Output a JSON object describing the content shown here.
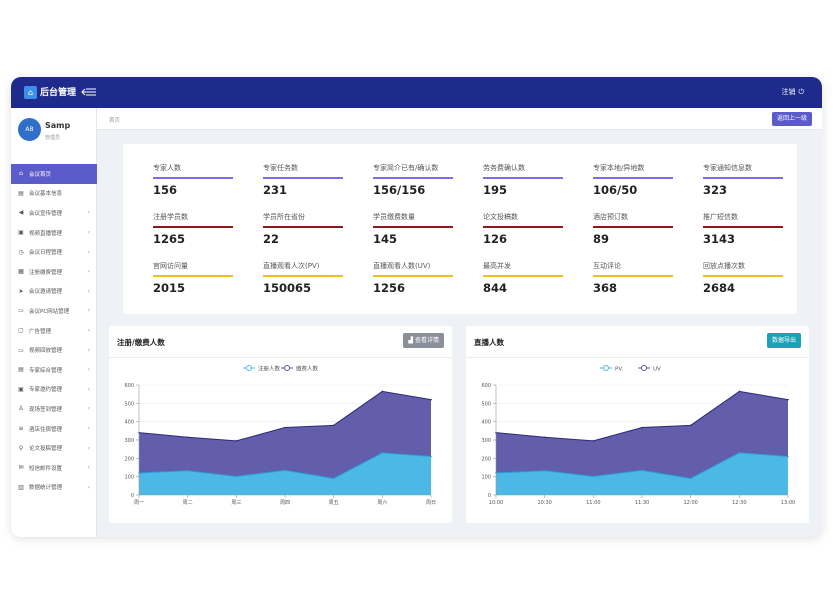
{
  "header": {
    "app_title": "后台管理",
    "logout_label": "注销",
    "logo_text": "⌂"
  },
  "user": {
    "avatar_text": "AB",
    "name": "Samp",
    "role": "管理员"
  },
  "sidebar": {
    "items": [
      {
        "label": "会议首页",
        "icon": "⌂",
        "active": true,
        "arrow": false
      },
      {
        "label": "会议基本信息",
        "icon": "▤",
        "active": false,
        "arrow": false
      },
      {
        "label": "会议宣传管理",
        "icon": "◀",
        "active": false,
        "arrow": true
      },
      {
        "label": "视频直播管理",
        "icon": "▣",
        "active": false,
        "arrow": true
      },
      {
        "label": "会议日程管理",
        "icon": "◷",
        "active": false,
        "arrow": true
      },
      {
        "label": "注册缴费管理",
        "icon": "▦",
        "active": false,
        "arrow": true
      },
      {
        "label": "会议邀请管理",
        "icon": "➤",
        "active": false,
        "arrow": true
      },
      {
        "label": "会议PC网站管理",
        "icon": "▭",
        "active": false,
        "arrow": true
      },
      {
        "label": "广告管理",
        "icon": "▢",
        "active": false,
        "arrow": true
      },
      {
        "label": "视频回放管理",
        "icon": "▭",
        "active": false,
        "arrow": true
      },
      {
        "label": "专家综合管理",
        "icon": "▤",
        "active": false,
        "arrow": true
      },
      {
        "label": "专家邀约管理",
        "icon": "▣",
        "active": false,
        "arrow": true
      },
      {
        "label": "现场签到管理",
        "icon": "♙",
        "active": false,
        "arrow": true
      },
      {
        "label": "酒店住宿管理",
        "icon": "≡",
        "active": false,
        "arrow": true
      },
      {
        "label": "论文投稿管理",
        "icon": "⚲",
        "active": false,
        "arrow": true
      },
      {
        "label": "短信邮件设置",
        "icon": "✉",
        "active": false,
        "arrow": true
      },
      {
        "label": "数据统计管理",
        "icon": "▥",
        "active": false,
        "arrow": true
      }
    ]
  },
  "breadcrumb": {
    "text": "首页",
    "back_label": "返回上一级"
  },
  "stats": [
    {
      "label": "专家人数",
      "value": "156",
      "color": "#7b6cf0"
    },
    {
      "label": "专家任务数",
      "value": "231",
      "color": "#7b6cf0"
    },
    {
      "label": "专家简介已有/确认数",
      "value": "156/156",
      "color": "#7b6cf0"
    },
    {
      "label": "劳务费确认数",
      "value": "195",
      "color": "#7b6cf0"
    },
    {
      "label": "专家本地/异地数",
      "value": "106/50",
      "color": "#7b6cf0"
    },
    {
      "label": "专家通知信息数",
      "value": "323",
      "color": "#7b6cf0"
    },
    {
      "label": "注册学员数",
      "value": "1265",
      "color": "#8b1a1a"
    },
    {
      "label": "学员所在省份",
      "value": "22",
      "color": "#8b1a1a"
    },
    {
      "label": "学员缴费数量",
      "value": "145",
      "color": "#8b1a1a"
    },
    {
      "label": "论文投稿数",
      "value": "126",
      "color": "#8b1a1a"
    },
    {
      "label": "酒店预订数",
      "value": "89",
      "color": "#8b1a1a"
    },
    {
      "label": "推广短信数",
      "value": "3143",
      "color": "#8b1a1a"
    },
    {
      "label": "官网访问量",
      "value": "2015",
      "color": "#f0c020"
    },
    {
      "label": "直播观看人次(PV)",
      "value": "150065",
      "color": "#f0c020"
    },
    {
      "label": "直播观看人数(UV)",
      "value": "1256",
      "color": "#f0c020"
    },
    {
      "label": "最高并发",
      "value": "844",
      "color": "#f0c020"
    },
    {
      "label": "互动评论",
      "value": "368",
      "color": "#f0c020"
    },
    {
      "label": "回放点播次数",
      "value": "2684",
      "color": "#f0c020"
    }
  ],
  "panels": {
    "left": {
      "title": "注册/缴费人数",
      "button": "查看详情",
      "button_icon": "▟",
      "button_color": "#8a8f99"
    },
    "right": {
      "title": "直播人数",
      "button": "数据导出",
      "button_color": "#1aa3b8"
    }
  },
  "colors": {
    "accent": "#5b5cc9",
    "topbar": "#1e2a8c",
    "series_dark": "#5a55a8",
    "series_light": "#4bbde9"
  },
  "chart_data": [
    {
      "type": "area",
      "categories": [
        "周一",
        "周二",
        "周三",
        "周四",
        "周五",
        "周六",
        "周日"
      ],
      "series": [
        {
          "name": "注册人数",
          "values": [
            120,
            132,
            101,
            134,
            90,
            230,
            210
          ]
        },
        {
          "name": "缴费人数",
          "values": [
            340,
            315,
            295,
            368,
            380,
            565,
            520
          ]
        }
      ],
      "ylim": [
        0,
        600
      ],
      "yticks": [
        0,
        100,
        200,
        300,
        400,
        500,
        600
      ],
      "legend": "top-center"
    },
    {
      "type": "area",
      "categories": [
        "10:00",
        "10:30",
        "11:00",
        "11:30",
        "12:00",
        "12:30",
        "13:00"
      ],
      "series": [
        {
          "name": "PV",
          "values": [
            120,
            132,
            101,
            134,
            90,
            230,
            210
          ]
        },
        {
          "name": "UV",
          "values": [
            340,
            315,
            295,
            368,
            380,
            565,
            520
          ]
        }
      ],
      "ylim": [
        0,
        600
      ],
      "yticks": [
        0,
        100,
        200,
        300,
        400,
        500,
        600
      ],
      "legend": "top-center"
    }
  ]
}
